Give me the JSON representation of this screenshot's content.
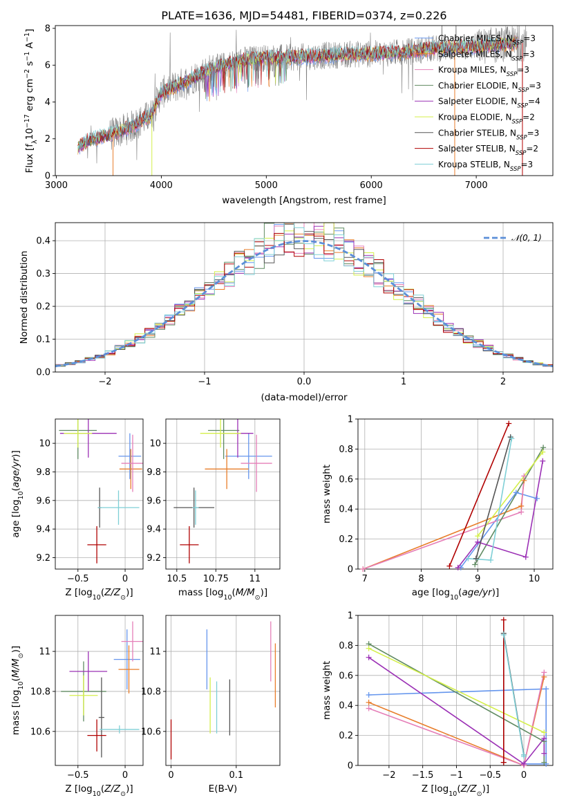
{
  "figure": {
    "title": "PLATE=1636, MJD=54481, FIBERID=0374, z=0.226"
  },
  "colors": {
    "Chabrier MILES": "#6495ed",
    "Salpeter MILES": "#e87d2a",
    "Kroupa MILES": "#e57fb8",
    "Chabrier ELODIE": "#5f8a61",
    "Salpeter ELODIE": "#9b30b5",
    "Kroupa ELODIE": "#d4ef4a",
    "Chabrier STELIB": "#555555",
    "Salpeter STELIB": "#b00000",
    "Kroupa STELIB": "#7ecfd6",
    "data": "#808080",
    "gauss": "#5b8fd8",
    "grid": "#b0b0b0"
  },
  "chart_data": [
    {
      "id": "spectrum",
      "type": "line",
      "title": "PLATE=1636, MJD=54481, FIBERID=0374, z=0.226",
      "xlabel": "wavelength [Angstrom, rest frame]",
      "ylabel": "Flux [fλ10⁻¹⁷ erg cm⁻² s⁻¹ A⁻¹]",
      "xlim": [
        2990,
        7730
      ],
      "ylim": [
        0,
        8.15
      ],
      "xticks": [
        3000,
        4000,
        5000,
        6000,
        7000
      ],
      "yticks": [
        0,
        2,
        4,
        6,
        8
      ],
      "grid": false,
      "legend": "upper right",
      "series": [
        {
          "name": "Chabrier MILES, N_SSP=3",
          "label": "Chabrier MILES, N",
          "sub": "SSP",
          "n": "=3"
        },
        {
          "name": "Salpeter MILES, N_SSP=3",
          "label": "Salpeter MILES, N",
          "sub": "SSP",
          "n": "=3"
        },
        {
          "name": "Kroupa MILES, N_SSP=3",
          "label": "Kroupa MILES, N",
          "sub": "SSP",
          "n": "=3"
        },
        {
          "name": "Chabrier ELODIE, N_SSP=3",
          "label": "Chabrier ELODIE, N",
          "sub": "SSP",
          "n": "=3"
        },
        {
          "name": "Salpeter ELODIE, N_SSP=4",
          "label": "Salpeter ELODIE, N",
          "sub": "SSP",
          "n": "=4"
        },
        {
          "name": "Kroupa ELODIE, N_SSP=2",
          "label": "Kroupa ELODIE, N",
          "sub": "SSP",
          "n": "=2"
        },
        {
          "name": "Chabrier STELIB, N_SSP=3",
          "label": "Chabrier STELIB, N",
          "sub": "SSP",
          "n": "=3"
        },
        {
          "name": "Salpeter STELIB, N_SSP=2",
          "label": "Salpeter STELIB, N",
          "sub": "SSP",
          "n": "=2"
        },
        {
          "name": "Kroupa STELIB, N_SSP=3",
          "label": "Kroupa STELIB, N",
          "sub": "SSP",
          "n": "=3"
        }
      ],
      "continuum": [
        [
          3205,
          1.5
        ],
        [
          3300,
          1.9
        ],
        [
          3500,
          2.2
        ],
        [
          3700,
          2.6
        ],
        [
          3900,
          3.3
        ],
        [
          4000,
          4.5
        ],
        [
          4200,
          5.0
        ],
        [
          4400,
          5.6
        ],
        [
          4600,
          6.0
        ],
        [
          4800,
          6.3
        ],
        [
          5000,
          6.4
        ],
        [
          5200,
          6.4
        ],
        [
          5500,
          6.5
        ],
        [
          5800,
          6.6
        ],
        [
          6000,
          6.6
        ],
        [
          6300,
          6.7
        ],
        [
          6600,
          6.9
        ],
        [
          7000,
          7.0
        ],
        [
          7400,
          7.2
        ]
      ]
    },
    {
      "id": "residuals",
      "type": "area",
      "xlabel": "(data-model)/error",
      "ylabel": "Normed distribution",
      "xlim": [
        -2.5,
        2.5
      ],
      "ylim": [
        0,
        0.455
      ],
      "xticks": [
        -2,
        -1,
        0,
        1,
        2
      ],
      "yticks": [
        0.0,
        0.1,
        0.2,
        0.3,
        0.4
      ],
      "grid": true,
      "legend": "upper right",
      "legend_label": "𝒩(0, 1)",
      "bins": 50
    },
    {
      "id": "age-metal",
      "type": "scatter",
      "xlabel": "Z [log₁₀(Z/Z⊙)]",
      "ylabel": "age  [log₁₀(age/yr)]",
      "xlim": [
        -0.74,
        0.19
      ],
      "ylim": [
        9.12,
        10.17
      ],
      "xticks": [
        -0.5,
        0.0
      ],
      "yticks": [
        9.2,
        9.4,
        9.6,
        9.8,
        10.0
      ],
      "grid": true,
      "points": [
        {
          "name": "Chabrier MILES",
          "x": 0.05,
          "y": 9.91,
          "xerr": 0.12,
          "yerr": 0.16
        },
        {
          "name": "Salpeter MILES",
          "x": 0.06,
          "y": 9.82,
          "xerr": 0.12,
          "yerr": 0.14
        },
        {
          "name": "Kroupa MILES",
          "x": 0.08,
          "y": 9.86,
          "xerr": 0.12,
          "yerr": 0.2
        },
        {
          "name": "Chabrier ELODIE",
          "x": -0.5,
          "y": 10.09,
          "xerr": 0.2,
          "yerr": 0.2
        },
        {
          "name": "Salpeter ELODIE",
          "x": -0.39,
          "y": 10.07,
          "xerr": 0.3,
          "yerr": 0.17
        },
        {
          "name": "Kroupa ELODIE",
          "x": -0.5,
          "y": 10.07,
          "xerr": 0.15,
          "yerr": 0.1
        },
        {
          "name": "Chabrier STELIB",
          "x": -0.27,
          "y": 9.55,
          "xerr": 0.02,
          "yerr": 0.14
        },
        {
          "name": "Salpeter STELIB",
          "x": -0.3,
          "y": 9.29,
          "xerr": 0.1,
          "yerr": 0.13
        },
        {
          "name": "Kroupa STELIB",
          "x": -0.07,
          "y": 9.55,
          "xerr": 0.22,
          "yerr": 0.12
        }
      ]
    },
    {
      "id": "age-mass",
      "type": "scatter",
      "xlabel": "mass [log₁₀(M/M⊙)]",
      "ylabel": "",
      "xlim": [
        10.43,
        11.16
      ],
      "ylim": [
        9.12,
        10.17
      ],
      "xticks": [
        10.5,
        10.75,
        11.0
      ],
      "yticks": [
        9.2,
        9.4,
        9.6,
        9.8,
        10.0
      ],
      "grid": true,
      "points": [
        {
          "name": "Chabrier MILES",
          "x": 10.96,
          "y": 9.91,
          "xerr": 0.15,
          "yerr": 0.16
        },
        {
          "name": "Salpeter MILES",
          "x": 10.82,
          "y": 9.82,
          "xerr": 0.14,
          "yerr": 0.14
        },
        {
          "name": "Kroupa MILES",
          "x": 11.01,
          "y": 9.86,
          "xerr": 0.1,
          "yerr": 0.2
        },
        {
          "name": "Chabrier ELODIE",
          "x": 10.8,
          "y": 10.09,
          "xerr": 0.1,
          "yerr": 0.2
        },
        {
          "name": "Salpeter ELODIE",
          "x": 10.89,
          "y": 10.07,
          "xerr": 0.1,
          "yerr": 0.17
        },
        {
          "name": "Kroupa ELODIE",
          "x": 10.78,
          "y": 10.07,
          "xerr": 0.13,
          "yerr": 0.1
        },
        {
          "name": "Chabrier STELIB",
          "x": 10.61,
          "y": 9.55,
          "xerr": 0.13,
          "yerr": 0.14
        },
        {
          "name": "Salpeter STELIB",
          "x": 10.58,
          "y": 9.29,
          "xerr": 0.06,
          "yerr": 0.13
        },
        {
          "name": "Kroupa STELIB",
          "x": 10.62,
          "y": 9.55,
          "xerr": 0.02,
          "yerr": 0.12
        }
      ]
    },
    {
      "id": "weight-age",
      "type": "line",
      "xlabel": "age  [log₁₀(age/yr)]",
      "ylabel": "mass weight",
      "xlim": [
        6.88,
        10.33
      ],
      "ylim": [
        0,
        1
      ],
      "xticks": [
        7,
        8,
        9,
        10
      ],
      "yticks": [
        0.0,
        0.2,
        0.4,
        0.6,
        0.8,
        1.0
      ],
      "grid": true,
      "series": [
        {
          "name": "Chabrier MILES",
          "x": [
            8.7,
            9.68,
            10.05
          ],
          "y": [
            0.01,
            0.51,
            0.47
          ]
        },
        {
          "name": "Salpeter MILES",
          "x": [
            6.97,
            9.77,
            9.82
          ],
          "y": [
            0.0,
            0.42,
            0.59
          ]
        },
        {
          "name": "Kroupa MILES",
          "x": [
            6.97,
            9.77,
            9.82
          ],
          "y": [
            0.0,
            0.38,
            0.62
          ]
        },
        {
          "name": "Chabrier ELODIE",
          "x": [
            8.95,
            10.16
          ],
          "y": [
            0.03,
            0.81
          ]
        },
        {
          "name": "Salpeter ELODIE",
          "x": [
            8.65,
            9.0,
            9.85,
            10.15
          ],
          "y": [
            0.01,
            0.18,
            0.08,
            0.72
          ]
        },
        {
          "name": "Kroupa ELODIE",
          "x": [
            9.0,
            10.15
          ],
          "y": [
            0.22,
            0.78
          ]
        },
        {
          "name": "Chabrier STELIB",
          "x": [
            8.97,
            9.58
          ],
          "y": [
            0.07,
            0.88
          ]
        },
        {
          "name": "Salpeter STELIB",
          "x": [
            8.5,
            9.55
          ],
          "y": [
            0.02,
            0.97
          ]
        },
        {
          "name": "Kroupa STELIB",
          "x": [
            8.83,
            9.23,
            9.6
          ],
          "y": [
            0.07,
            0.06,
            0.87
          ]
        }
      ]
    },
    {
      "id": "mass-metal",
      "type": "scatter",
      "xlabel": "Z [log₁₀(Z/Z⊙)]",
      "ylabel": "mass [log₁₀(M/M⊙)]",
      "xlim": [
        -0.74,
        0.19
      ],
      "ylim": [
        10.43,
        11.18
      ],
      "xticks": [
        -0.5,
        0.0
      ],
      "yticks": [
        10.6,
        10.8,
        11.0
      ],
      "grid": true,
      "points": [
        {
          "name": "Chabrier MILES",
          "x": 0.02,
          "y": 10.96,
          "xerr": 0.14,
          "yerr": 0.15
        },
        {
          "name": "Salpeter MILES",
          "x": 0.04,
          "y": 10.91,
          "xerr": 0.11,
          "yerr": 0.12
        },
        {
          "name": "Kroupa MILES",
          "x": 0.08,
          "y": 11.05,
          "xerr": 0.12,
          "yerr": 0.1
        },
        {
          "name": "Chabrier ELODIE",
          "x": -0.44,
          "y": 10.8,
          "xerr": 0.24,
          "yerr": 0.15
        },
        {
          "name": "Salpeter ELODIE",
          "x": -0.39,
          "y": 10.9,
          "xerr": 0.2,
          "yerr": 0.1
        },
        {
          "name": "Kroupa ELODIE",
          "x": -0.44,
          "y": 10.78,
          "xerr": 0.15,
          "yerr": 0.1
        },
        {
          "name": "Chabrier STELIB",
          "x": -0.25,
          "y": 10.67,
          "xerr": 0.03,
          "yerr": 0.2
        },
        {
          "name": "Salpeter STELIB",
          "x": -0.3,
          "y": 10.58,
          "xerr": 0.1,
          "yerr": 0.08
        },
        {
          "name": "Kroupa STELIB",
          "x": -0.06,
          "y": 10.61,
          "xerr": 0.21,
          "yerr": 0.02
        }
      ]
    },
    {
      "id": "mass-ebv",
      "type": "scatter",
      "xlabel": "E(B-V)",
      "ylabel": "",
      "xlim": [
        -0.008,
        0.167
      ],
      "ylim": [
        10.43,
        11.18
      ],
      "xticks": [
        0.0,
        0.1
      ],
      "yticks": [
        10.6,
        10.8,
        11.0
      ],
      "grid": true,
      "points": [
        {
          "name": "Chabrier MILES",
          "x": 0.055,
          "y": 10.96,
          "xerr": 0,
          "yerr": 0.15
        },
        {
          "name": "Salpeter MILES",
          "x": 0.16,
          "y": 10.88,
          "xerr": 0,
          "yerr": 0.16
        },
        {
          "name": "Kroupa MILES",
          "x": 0.153,
          "y": 11.0,
          "xerr": 0,
          "yerr": 0.15
        },
        {
          "name": "Chabrier ELODIE",
          "x": 0.0,
          "y": 10.6,
          "xerr": 0,
          "yerr": 0.0
        },
        {
          "name": "Salpeter ELODIE",
          "x": 0.0,
          "y": 10.6,
          "xerr": 0,
          "yerr": 0.0
        },
        {
          "name": "Kroupa ELODIE",
          "x": 0.06,
          "y": 10.73,
          "xerr": 0,
          "yerr": 0.14
        },
        {
          "name": "Chabrier STELIB",
          "x": 0.09,
          "y": 10.72,
          "xerr": 0,
          "yerr": 0.14
        },
        {
          "name": "Salpeter STELIB",
          "x": 0.0,
          "y": 10.56,
          "xerr": 0,
          "yerr": 0.1
        },
        {
          "name": "Kroupa STELIB",
          "x": 0.07,
          "y": 10.72,
          "xerr": 0,
          "yerr": 0.13
        }
      ]
    },
    {
      "id": "weight-metal",
      "type": "line",
      "xlabel": "Z [log₁₀(Z/Z⊙)]",
      "ylabel": "mass weight",
      "xlim": [
        -2.46,
        0.43
      ],
      "ylim": [
        0,
        1
      ],
      "xticks": [
        -2.0,
        -1.5,
        -1.0,
        -0.5,
        0.0
      ],
      "yticks": [
        0.0,
        0.2,
        0.4,
        0.6,
        0.8,
        1.0
      ],
      "grid": true,
      "series": [
        {
          "name": "Chabrier MILES",
          "x": [
            -2.3,
            0.33,
            0.33,
            0.0
          ],
          "y": [
            0.47,
            0.51,
            0.01,
            0.01
          ]
        },
        {
          "name": "Salpeter MILES",
          "x": [
            -2.3,
            0.0,
            0.3
          ],
          "y": [
            0.42,
            0.0,
            0.59
          ]
        },
        {
          "name": "Kroupa MILES",
          "x": [
            -2.3,
            0.0,
            0.3
          ],
          "y": [
            0.38,
            0.0,
            0.62
          ]
        },
        {
          "name": "Chabrier ELODIE",
          "x": [
            -2.3,
            0.3,
            0.3
          ],
          "y": [
            0.81,
            0.16,
            0.02
          ]
        },
        {
          "name": "Salpeter ELODIE",
          "x": [
            -2.3,
            0.0,
            0.3,
            0.3
          ],
          "y": [
            0.72,
            0.01,
            0.18,
            0.08
          ]
        },
        {
          "name": "Kroupa ELODIE",
          "x": [
            -2.3,
            0.3
          ],
          "y": [
            0.78,
            0.22
          ]
        },
        {
          "name": "Chabrier STELIB",
          "x": [
            -0.3,
            -0.3,
            0.0
          ],
          "y": [
            0.02,
            0.88,
            0.07
          ]
        },
        {
          "name": "Salpeter STELIB",
          "x": [
            -0.3,
            -0.3
          ],
          "y": [
            0.02,
            0.97
          ]
        },
        {
          "name": "Kroupa STELIB",
          "x": [
            -0.3,
            0.0,
            0.0
          ],
          "y": [
            0.87,
            0.06,
            0.07
          ]
        }
      ]
    }
  ]
}
